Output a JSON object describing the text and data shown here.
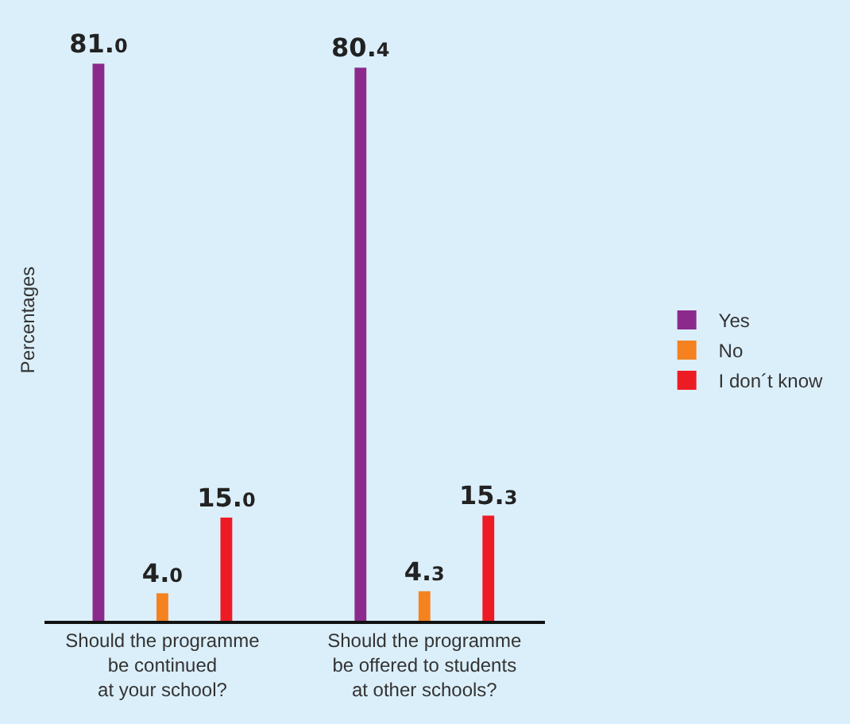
{
  "chart_data": {
    "type": "bar",
    "categories": [
      "Should the programme\nbe continued\nat your school?",
      "Should the programme\nbe offered to students\nat other schools?"
    ],
    "ylabel": "Percentages",
    "series": [
      {
        "name": "Yes",
        "color": "#8b2a8c",
        "values": [
          81.0,
          80.4
        ],
        "value_labels": [
          "81.0",
          "80.4"
        ]
      },
      {
        "name": "No",
        "color": "#f5821f",
        "values": [
          4.0,
          4.3
        ],
        "value_labels": [
          "4.0",
          "4.3"
        ]
      },
      {
        "name": "I don´t know",
        "color": "#ed1c24",
        "values": [
          15.0,
          15.3
        ],
        "value_labels": [
          "15.0",
          "15.3"
        ]
      }
    ],
    "legend": "right",
    "grid": false
  }
}
